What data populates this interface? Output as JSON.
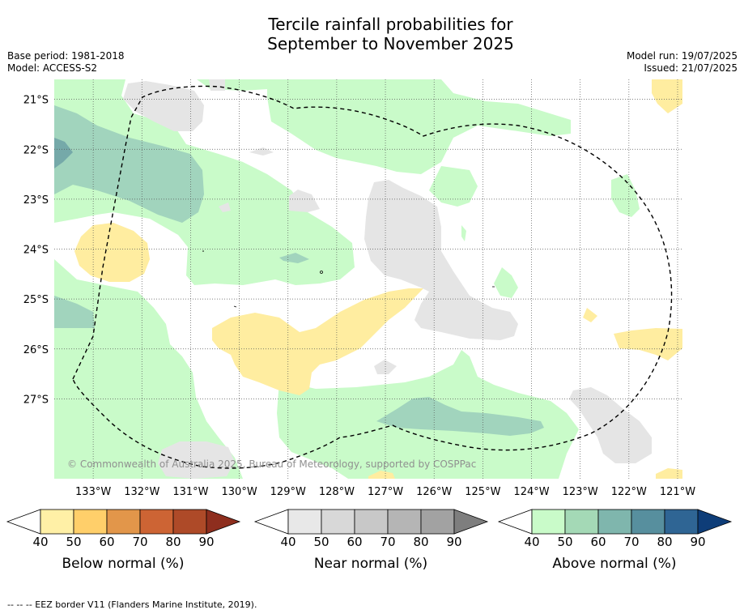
{
  "title_line1": "Tercile rainfall probabilities for",
  "title_line2": "September to November 2025",
  "base_period": "Base period: 1981-2018",
  "model": "Model: ACCESS-S2",
  "model_run": "Model run: 19/07/2025",
  "issued": "Issued: 21/07/2025",
  "copyright": "© Commonwealth of Australia 2025, Bureau of Meteorology, supported by COSPPac",
  "footnote": "-- -- -- EEZ border V11 (Flanders Marine Institute, 2019).",
  "map": {
    "lon_labels": [
      "133°W",
      "132°W",
      "131°W",
      "130°W",
      "129°W",
      "128°W",
      "127°W",
      "126°W",
      "125°W",
      "124°W",
      "123°W",
      "122°W",
      "121°W"
    ],
    "lat_labels": [
      "21°S",
      "22°S",
      "23°S",
      "24°S",
      "25°S",
      "26°S",
      "27°S"
    ],
    "lon_range": [
      -133.8,
      -120.9
    ],
    "lat_range": [
      -28.6,
      -20.6
    ]
  },
  "colorbars": [
    {
      "label": "Below normal (%)",
      "ticks": [
        "40",
        "50",
        "60",
        "70",
        "80",
        "90"
      ],
      "colors": [
        "#fff0a6",
        "#ffcf6a",
        "#e2964a",
        "#cd6434",
        "#ae4a28",
        "#8e2e1e"
      ]
    },
    {
      "label": "Near normal (%)",
      "ticks": [
        "40",
        "50",
        "60",
        "70",
        "80",
        "90"
      ],
      "colors": [
        "#e8e8e8",
        "#d8d8d8",
        "#c8c8c8",
        "#b5b5b5",
        "#a2a2a2",
        "#7e7e7e"
      ]
    },
    {
      "label": "Above normal (%)",
      "ticks": [
        "40",
        "50",
        "60",
        "70",
        "80",
        "90"
      ],
      "colors": [
        "#c9fbc9",
        "#a4d9b6",
        "#7fb6ad",
        "#578f9e",
        "#2f6594",
        "#0e3d78"
      ]
    }
  ]
}
